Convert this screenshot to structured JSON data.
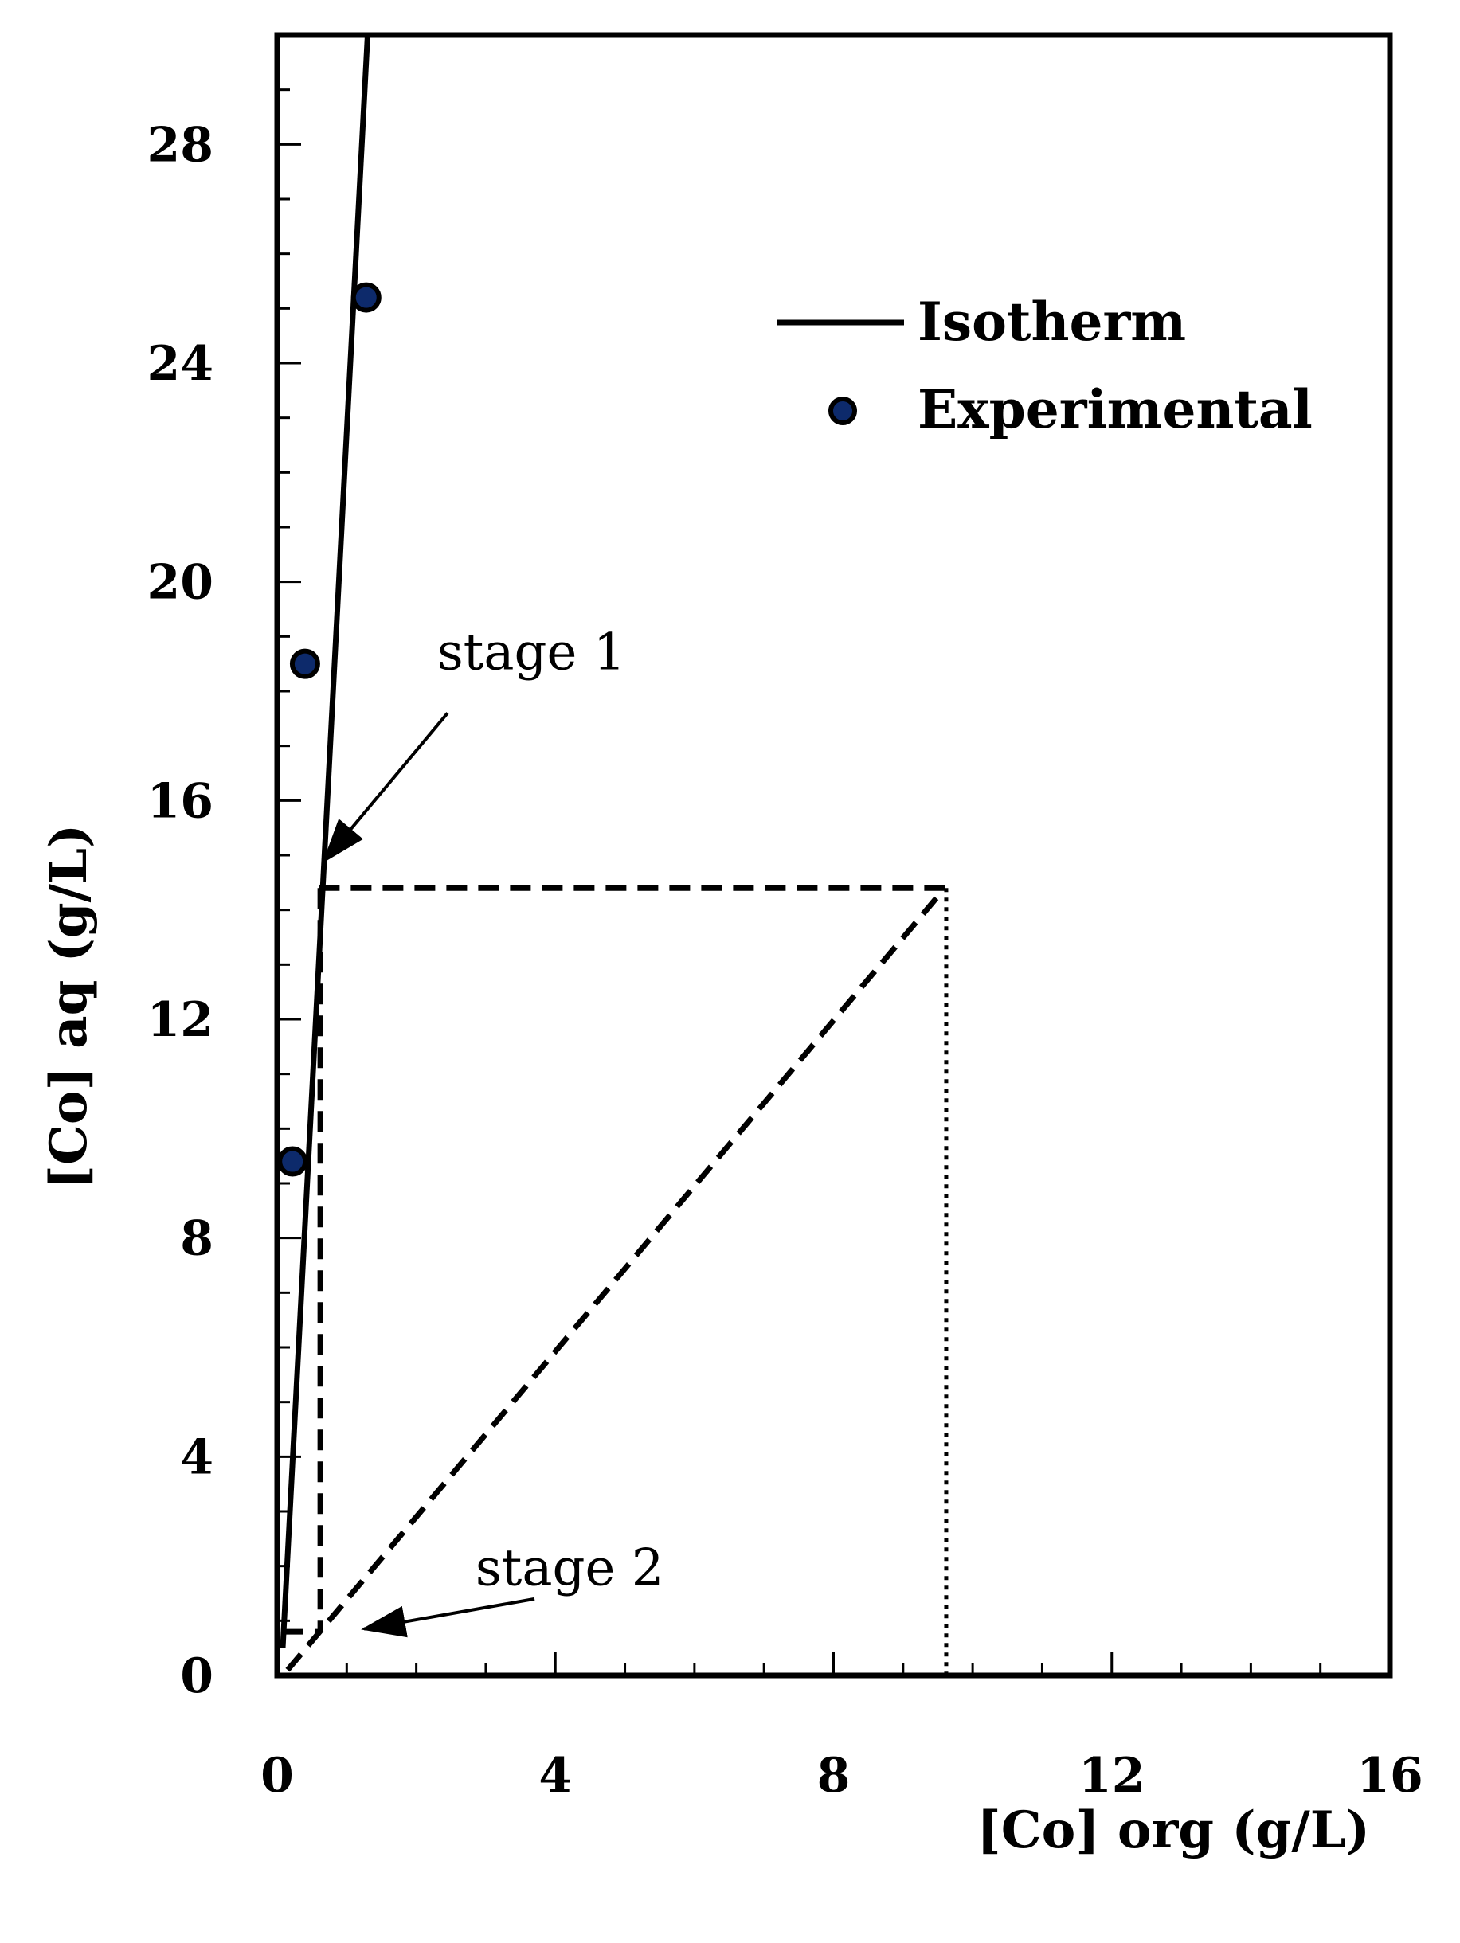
{
  "chart_data": {
    "type": "scatter",
    "xlabel": "[Co] org (g/L)",
    "ylabel": "[Co] aq (g/L)",
    "xlim": [
      0,
      16
    ],
    "ylim": [
      0,
      30
    ],
    "x_ticks": [
      0,
      4,
      8,
      12,
      16
    ],
    "x_tick_labels": [
      "0",
      "4",
      "8",
      "12",
      "16"
    ],
    "y_ticks": [
      0,
      4,
      8,
      12,
      16,
      20,
      24,
      28
    ],
    "y_tick_labels": [
      "0",
      "4",
      "8",
      "12",
      "16",
      "20",
      "24",
      "28"
    ],
    "x_minor_step": 1,
    "y_minor_step": 1,
    "grid": false,
    "legend_position": "top-right",
    "series": [
      {
        "name": "Isotherm",
        "kind": "line",
        "style": "solid",
        "x": [
          0.08,
          1.3
        ],
        "y": [
          0.5,
          30
        ]
      },
      {
        "name": "Experimental",
        "kind": "scatter",
        "color": "#0d2a6b",
        "x": [
          0.22,
          0.4,
          1.28
        ],
        "y": [
          9.4,
          18.5,
          25.2
        ]
      }
    ],
    "construction_lines": [
      {
        "style": "dashed",
        "x": [
          0.6,
          9.6
        ],
        "y": [
          14.4,
          14.4
        ]
      },
      {
        "style": "dashed",
        "x": [
          0.62,
          0.62
        ],
        "y": [
          14.4,
          0.8
        ]
      },
      {
        "style": "dashed",
        "x": [
          0.08,
          0.62
        ],
        "y": [
          0.8,
          0.8
        ]
      },
      {
        "style": "dashed",
        "x": [
          0.15,
          9.6
        ],
        "y": [
          0.1,
          14.4
        ]
      },
      {
        "style": "dotted",
        "x": [
          9.62,
          9.62
        ],
        "y": [
          14.4,
          0
        ]
      }
    ],
    "annotations": [
      {
        "text": "stage 1",
        "text_x": 2.3,
        "text_y": 18.4,
        "arrow_from": [
          2.45,
          17.6
        ],
        "arrow_to": [
          0.68,
          14.9
        ]
      },
      {
        "text": "stage 2",
        "text_x": 2.85,
        "text_y": 1.65,
        "arrow_from": [
          3.7,
          1.4
        ],
        "arrow_to": [
          1.25,
          0.85
        ]
      }
    ]
  }
}
